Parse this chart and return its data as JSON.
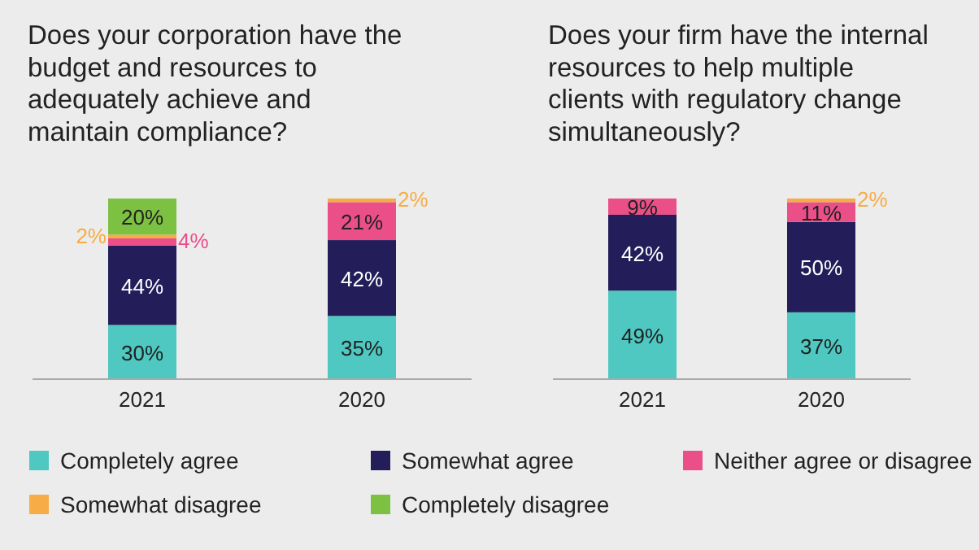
{
  "chart_data": [
    {
      "type": "bar",
      "stacked": true,
      "title": "Does your corporation have the budget and resources to adequately achieve and maintain compliance?",
      "categories": [
        "2021",
        "2020"
      ],
      "legend": "bottom",
      "series": [
        {
          "name": "Completely agree",
          "color": "#4ec8c0",
          "values": [
            30,
            35
          ],
          "value_labels": [
            "30%",
            "35%"
          ]
        },
        {
          "name": "Somewhat agree",
          "color": "#231e5a",
          "values": [
            44,
            42
          ],
          "value_labels": [
            "44%",
            "42%"
          ]
        },
        {
          "name": "Neither agree or disagree",
          "color": "#ea4f88",
          "values": [
            4,
            21
          ],
          "value_labels": [
            "4%",
            "21%"
          ]
        },
        {
          "name": "Somewhat disagree",
          "color": "#f7ac45",
          "values": [
            2,
            2
          ],
          "value_labels": [
            "2%",
            "2%"
          ]
        },
        {
          "name": "Completely disagree",
          "color": "#7dc143",
          "values": [
            20,
            null
          ],
          "value_labels": [
            "20%",
            null
          ]
        }
      ]
    },
    {
      "type": "bar",
      "stacked": true,
      "title": "Does your firm have the internal resources to help multiple clients with regulatory change simultaneously?",
      "categories": [
        "2021",
        "2020"
      ],
      "series": [
        {
          "color": "#4ec8c0",
          "values": [
            49,
            37
          ],
          "value_labels": [
            "49%",
            "37%"
          ]
        },
        {
          "color": "#231e5a",
          "values": [
            42,
            50
          ],
          "value_labels": [
            "42%",
            "50%"
          ]
        },
        {
          "color": "#ea4f88",
          "values": [
            9,
            11
          ],
          "value_labels": [
            "9%",
            "11%"
          ]
        },
        {
          "color": "#f7ac45",
          "values": [
            null,
            2
          ],
          "value_labels": [
            null,
            "2%"
          ]
        }
      ]
    }
  ]
}
